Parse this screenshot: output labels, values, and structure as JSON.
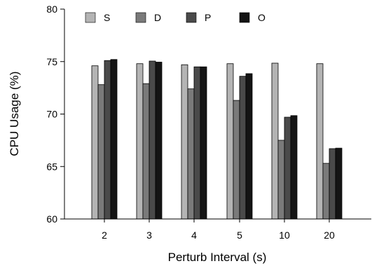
{
  "chart_data": {
    "type": "bar",
    "xlabel": "Perturb Interval (s)",
    "ylabel": "CPU Usage (%)",
    "ylim": [
      60,
      80
    ],
    "yticks": [
      "60",
      "65",
      "70",
      "75",
      "80"
    ],
    "categories": [
      "2",
      "3",
      "4",
      "5",
      "10",
      "20"
    ],
    "legend_position": "top",
    "grid": false,
    "series": [
      {
        "name": "S",
        "color": "#b4b4b4",
        "values": [
          74.6,
          74.8,
          74.7,
          74.8,
          74.85,
          74.8
        ]
      },
      {
        "name": "D",
        "color": "#7a7a7a",
        "values": [
          72.8,
          72.9,
          72.4,
          71.3,
          67.5,
          65.3
        ]
      },
      {
        "name": "P",
        "color": "#4a4a4a",
        "values": [
          75.1,
          75.05,
          74.5,
          73.6,
          69.7,
          66.7
        ]
      },
      {
        "name": "O",
        "color": "#141414",
        "values": [
          75.2,
          74.95,
          74.5,
          73.85,
          69.85,
          66.75
        ]
      }
    ]
  }
}
